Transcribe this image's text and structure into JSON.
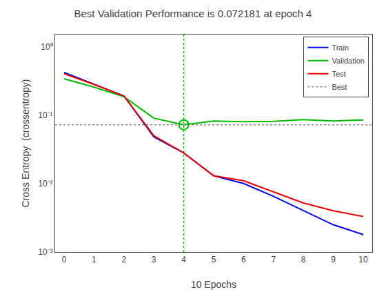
{
  "chart_data": {
    "type": "line",
    "title": "Best Validation Performance is 0.072181 at epoch 4",
    "x_label": "10 Epochs",
    "y_label": "Cross Entropy  (crossentropy)",
    "log": "y",
    "grid": false,
    "legend": "upper right",
    "x": [
      0,
      1,
      2,
      3,
      4,
      5,
      6,
      7,
      8,
      9,
      10
    ],
    "series": [
      {
        "name": "Train",
        "color": "#0000ee",
        "values": [
          0.42,
          0.28,
          0.19,
          0.048,
          0.028,
          0.013,
          0.01,
          0.0065,
          0.004,
          0.0025,
          0.0018
        ]
      },
      {
        "name": "Validation",
        "color": "#00bb00",
        "values": [
          0.34,
          0.255,
          0.185,
          0.09,
          0.072181,
          0.082,
          0.08,
          0.081,
          0.086,
          0.082,
          0.085
        ]
      },
      {
        "name": "Test",
        "color": "#ee0000",
        "values": [
          0.4,
          0.28,
          0.19,
          0.05,
          0.028,
          0.013,
          0.011,
          0.0075,
          0.0052,
          0.004,
          0.0033
        ]
      }
    ],
    "reference_lines": [
      {
        "name": "Best",
        "axis": "y",
        "value": 0.072181,
        "color": "#888888",
        "line_style": "dotted"
      },
      {
        "axis": "x",
        "value": 4,
        "color": "#00bb00",
        "line_style": "dotted"
      }
    ],
    "points": [
      {
        "x": 4,
        "y": 0.072181,
        "color": "#00bb00",
        "marker": "circle"
      }
    ],
    "xlim": [
      -0.3,
      10.3
    ],
    "xticks": [
      0,
      1,
      2,
      3,
      4,
      5,
      6,
      7,
      8,
      9,
      10
    ],
    "ylim": [
      0.001,
      1.5
    ],
    "yticks": [
      {
        "value": 0.001,
        "label": "10⁻³"
      },
      {
        "value": 0.01,
        "label": "10⁻²"
      },
      {
        "value": 0.1,
        "label": "10⁻¹"
      },
      {
        "value": 1,
        "label": "10⁰"
      }
    ]
  }
}
